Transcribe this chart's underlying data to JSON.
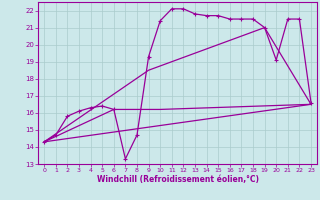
{
  "bg_color": "#cce8ea",
  "grid_color": "#aacccc",
  "line_color": "#990099",
  "xlabel": "Windchill (Refroidissement éolien,°C)",
  "xlim": [
    -0.5,
    23.5
  ],
  "ylim": [
    13,
    22.5
  ],
  "yticks": [
    13,
    14,
    15,
    16,
    17,
    18,
    19,
    20,
    21,
    22
  ],
  "xticks": [
    0,
    1,
    2,
    3,
    4,
    5,
    6,
    7,
    8,
    9,
    10,
    11,
    12,
    13,
    14,
    15,
    16,
    17,
    18,
    19,
    20,
    21,
    22,
    23
  ],
  "line1_x": [
    0,
    1,
    2,
    3,
    4,
    5,
    6,
    7,
    8,
    9,
    10,
    11,
    12,
    13,
    14,
    15,
    16,
    17,
    18,
    19,
    20,
    21,
    22,
    23
  ],
  "line1_y": [
    14.3,
    14.7,
    15.8,
    16.1,
    16.3,
    16.4,
    16.2,
    13.3,
    14.7,
    19.3,
    21.4,
    22.1,
    22.1,
    21.8,
    21.7,
    21.7,
    21.5,
    21.5,
    21.5,
    21.0,
    19.1,
    21.5,
    21.5,
    16.6
  ],
  "line2_x": [
    0,
    6,
    10,
    23
  ],
  "line2_y": [
    14.3,
    16.2,
    16.2,
    16.5
  ],
  "line3_x": [
    0,
    23
  ],
  "line3_y": [
    14.3,
    16.5
  ],
  "line4_x": [
    0,
    9,
    19,
    23
  ],
  "line4_y": [
    14.3,
    18.5,
    21.0,
    16.5
  ]
}
